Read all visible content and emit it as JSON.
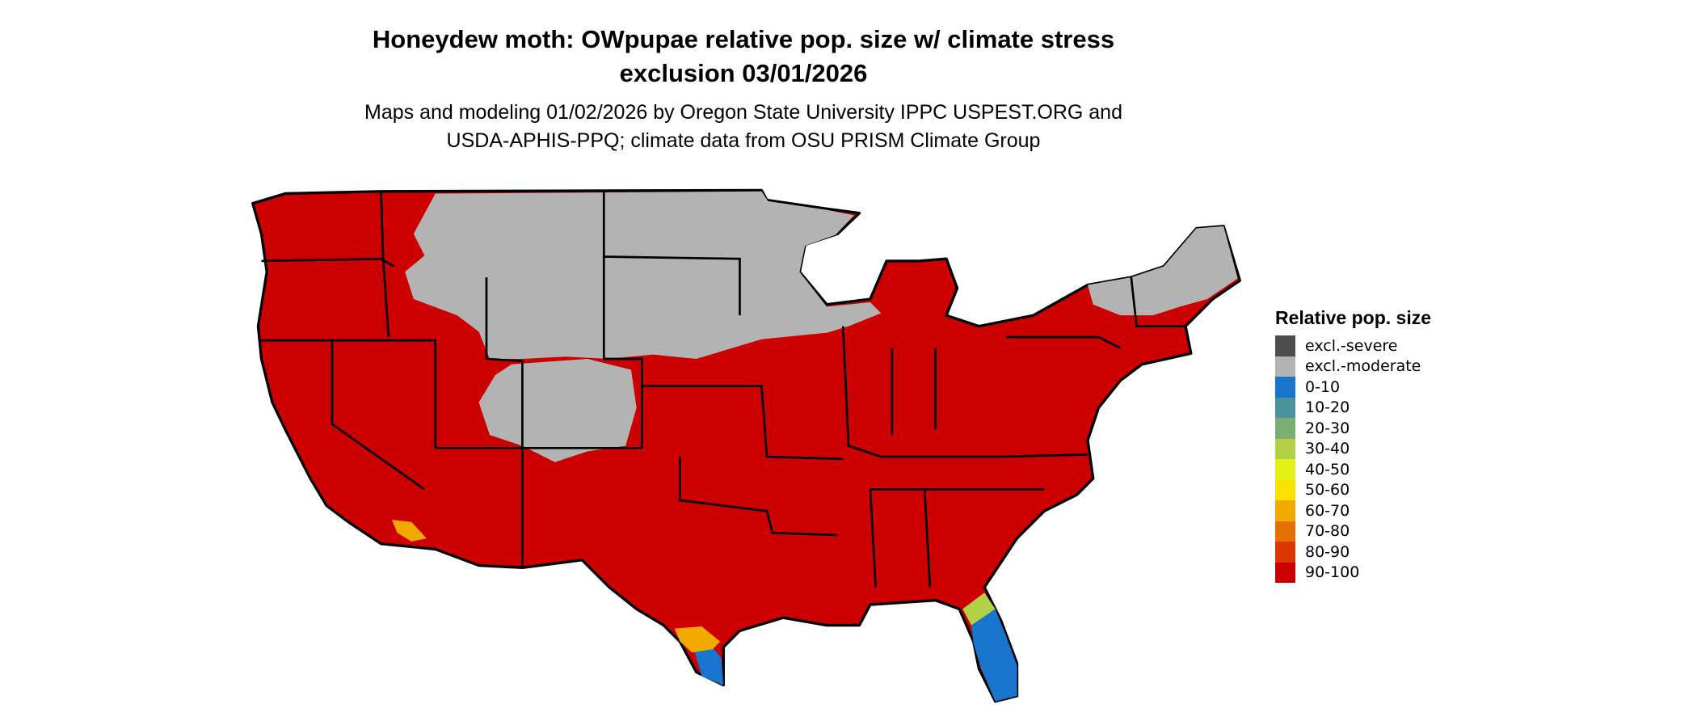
{
  "title": "Honeydew moth: OWpupae relative pop. size w/ climate stress exclusion 03/01/2026",
  "title_line1": "Honeydew moth: OWpupae relative pop. size w/ climate stress",
  "title_line2": "exclusion 03/01/2026",
  "subtitle_line1": "Maps and modeling 01/02/2026 by Oregon State University IPPC USPEST.ORG and",
  "subtitle_line2": "USDA-APHIS-PPQ; climate data from OSU PRISM Climate Group",
  "map": {
    "region": "contiguous United States",
    "dominant_class": "90-100",
    "excluded_class": "excl.-moderate",
    "low_classes_in": [
      "southern Florida",
      "southern Texas",
      "southern California/Arizona border"
    ]
  },
  "legend": {
    "title": "Relative pop. size",
    "items": [
      {
        "label": "excl.-severe",
        "color": "#4d4d4d"
      },
      {
        "label": "excl.-moderate",
        "color": "#b3b3b3"
      },
      {
        "label": "0-10",
        "color": "#1874cd"
      },
      {
        "label": "10-20",
        "color": "#48939e"
      },
      {
        "label": "20-30",
        "color": "#7cae74"
      },
      {
        "label": "30-40",
        "color": "#b3d147"
      },
      {
        "label": "40-50",
        "color": "#e5f015"
      },
      {
        "label": "50-60",
        "color": "#fae100"
      },
      {
        "label": "60-70",
        "color": "#f2a900"
      },
      {
        "label": "70-80",
        "color": "#e57000"
      },
      {
        "label": "80-90",
        "color": "#db3700"
      },
      {
        "label": "90-100",
        "color": "#cc0000"
      }
    ]
  }
}
